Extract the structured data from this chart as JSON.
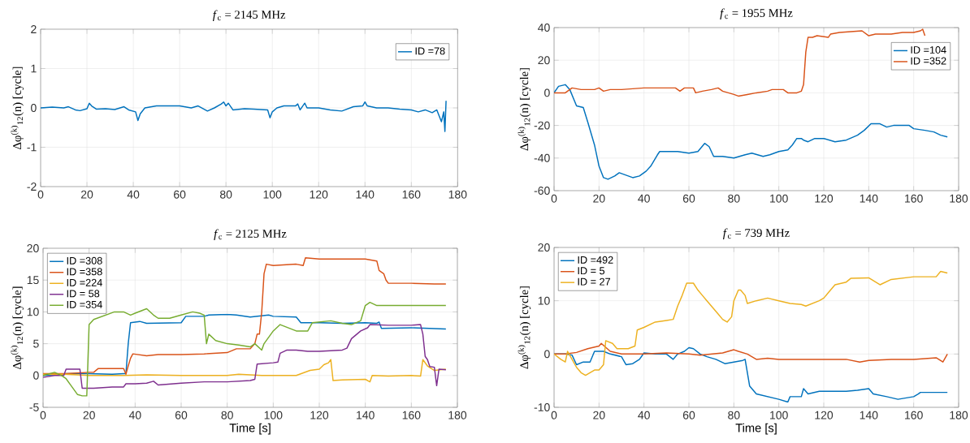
{
  "chart_data": [
    {
      "type": "line",
      "title": "*f*$_{c}$ = 2145 MHz",
      "ylabel": "Δφ$^{(k)}$$_{12}$(n) [cycle]",
      "xlim": [
        0,
        180
      ],
      "ylim": [
        -2,
        2
      ],
      "xticks": [
        0,
        20,
        40,
        60,
        80,
        100,
        120,
        140,
        160,
        180
      ],
      "yticks": [
        -2,
        -1,
        0,
        1,
        2
      ],
      "grid": true,
      "legend": "top right",
      "series": [
        {
          "name": "ID =78",
          "color": "#0072bd",
          "x": [
            0,
            5,
            10,
            12,
            15,
            17,
            20,
            21,
            22,
            24,
            28,
            32,
            36,
            38,
            41,
            42,
            43,
            45,
            50,
            55,
            60,
            65,
            68,
            72,
            75,
            78,
            79,
            80,
            81,
            83,
            88,
            92,
            98,
            99,
            100,
            102,
            105,
            110,
            111,
            112,
            114,
            115,
            120,
            125,
            130,
            135,
            139,
            140,
            141,
            145,
            150,
            155,
            160,
            163,
            166,
            169,
            171,
            172,
            173,
            174,
            174.5,
            175
          ],
          "values": [
            0,
            0.02,
            0,
            0.03,
            -0.05,
            -0.07,
            -0.02,
            0.12,
            0.05,
            -0.03,
            -0.02,
            -0.04,
            0.03,
            -0.05,
            -0.1,
            -0.32,
            -0.15,
            0,
            0.05,
            0.05,
            0.05,
            0,
            0.05,
            -0.08,
            0,
            0.1,
            0.15,
            0.05,
            0.12,
            -0.05,
            -0.02,
            -0.03,
            -0.05,
            -0.25,
            -0.1,
            0,
            0.05,
            0.05,
            0.1,
            -0.05,
            0.12,
            0,
            0,
            -0.05,
            -0.08,
            0.03,
            0.05,
            0.15,
            0.05,
            0,
            0,
            -0.03,
            -0.05,
            -0.1,
            -0.05,
            -0.12,
            -0.05,
            -0.2,
            -0.35,
            -0.1,
            -0.6,
            0.18
          ]
        }
      ]
    },
    {
      "type": "line",
      "title": "*f*$_{c}$ = 1955 MHz",
      "ylabel": "Δφ$^{(k)}$$_{12}$(n) [cycle]",
      "xlim": [
        0,
        180
      ],
      "ylim": [
        -60,
        40
      ],
      "xticks": [
        0,
        20,
        40,
        60,
        80,
        100,
        120,
        140,
        160,
        180
      ],
      "yticks": [
        -60,
        -40,
        -20,
        0,
        20,
        40
      ],
      "grid": true,
      "legend": "top right",
      "series": [
        {
          "name": "ID =104",
          "color": "#0072bd",
          "x": [
            0,
            2,
            5,
            7,
            10,
            13,
            15,
            18,
            20,
            22,
            24,
            27,
            29,
            33,
            35,
            38,
            41,
            43,
            46,
            47,
            55,
            60,
            64,
            67,
            69,
            71,
            75,
            80,
            85,
            88,
            93,
            96,
            100,
            104,
            106,
            108,
            110,
            111,
            113,
            116,
            120,
            125,
            130,
            135,
            138,
            141,
            145,
            148,
            151,
            158,
            160,
            165,
            169,
            172,
            175
          ],
          "values": [
            0,
            4,
            5,
            2,
            -8,
            -9,
            -18,
            -32,
            -45,
            -52,
            -53,
            -51,
            -49,
            -51,
            -52,
            -51,
            -48,
            -45,
            -38,
            -36,
            -36,
            -37,
            -36,
            -31,
            -33,
            -39,
            -39,
            -40,
            -38,
            -37,
            -39,
            -38,
            -36,
            -35,
            -32,
            -28,
            -28,
            -29,
            -30,
            -28,
            -28,
            -30,
            -29,
            -26,
            -23,
            -19,
            -19,
            -21,
            -20,
            -20,
            -22,
            -23,
            -24,
            -26,
            -27
          ]
        },
        {
          "name": "ID =352",
          "color": "#d95319",
          "x": [
            0,
            5,
            8,
            12,
            18,
            20,
            22,
            25,
            30,
            40,
            50,
            54,
            56,
            58,
            62,
            63,
            66,
            70,
            73,
            75,
            80,
            82,
            86,
            90,
            95,
            97,
            102,
            104,
            108,
            110,
            111,
            112,
            113,
            115,
            117,
            122,
            123,
            127,
            137,
            140,
            143,
            150,
            155,
            160,
            163,
            164,
            165
          ],
          "values": [
            0,
            0,
            3,
            2,
            2,
            3,
            1,
            2,
            2,
            3,
            3,
            3,
            1,
            3,
            3,
            0,
            1,
            2,
            3,
            1,
            -1,
            -2,
            -1,
            0,
            1,
            2,
            2,
            0,
            0,
            1,
            5,
            25,
            34,
            34,
            35,
            34,
            36,
            37,
            38,
            35,
            36,
            36,
            37,
            37,
            38,
            39,
            35
          ]
        }
      ]
    },
    {
      "type": "line",
      "title": "*f*$_{c}$ = 2125 MHz",
      "xlabel": "Time [s]",
      "ylabel": "Δφ$^{(k)}$$_{12}$(n) [cycle]",
      "xlim": [
        0,
        180
      ],
      "ylim": [
        -5,
        20
      ],
      "xticks": [
        0,
        20,
        40,
        60,
        80,
        100,
        120,
        140,
        160,
        180
      ],
      "yticks": [
        -5,
        0,
        5,
        10,
        15,
        20
      ],
      "grid": true,
      "legend": "top left",
      "series": [
        {
          "name": "ID =308",
          "color": "#0072bd",
          "x": [
            0,
            10,
            20,
            30,
            35,
            36,
            37,
            38,
            42,
            45,
            60,
            62,
            70,
            72,
            80,
            84,
            90,
            98,
            100,
            110,
            112,
            120,
            130,
            140,
            145,
            146,
            147,
            160,
            175
          ],
          "values": [
            0,
            0.3,
            0.3,
            0.2,
            0.3,
            0.3,
            5,
            8.3,
            8.5,
            8.2,
            8.3,
            9.3,
            9.3,
            9.5,
            9.6,
            9.5,
            9.2,
            9.5,
            9.3,
            9.2,
            8.3,
            8.3,
            8.2,
            8.3,
            8.2,
            8.4,
            7.4,
            7.5,
            7.3
          ]
        },
        {
          "name": "ID =358",
          "color": "#d95319",
          "x": [
            0,
            10,
            20,
            22,
            24,
            35,
            36,
            37,
            38,
            39,
            45,
            50,
            60,
            70,
            80,
            84,
            90,
            92,
            93,
            94,
            95,
            96,
            97,
            100,
            110,
            113,
            114,
            120,
            140,
            145,
            146,
            148,
            149,
            150,
            160,
            170,
            175
          ],
          "values": [
            0.3,
            0.3,
            0.5,
            0.5,
            1.1,
            1.1,
            0.2,
            1.5,
            2.7,
            3.4,
            3.1,
            3.3,
            3.3,
            3.4,
            3.6,
            4.2,
            4.2,
            5,
            6.5,
            6.5,
            10,
            16,
            17.5,
            17.3,
            17.5,
            17.3,
            18.5,
            18.3,
            18.3,
            18,
            16.5,
            16,
            15,
            14.5,
            14.5,
            14.4,
            14.4
          ]
        },
        {
          "name": "ID =224",
          "color": "#edb120",
          "x": [
            0,
            10,
            20,
            22,
            25,
            35,
            45,
            60,
            78,
            80,
            85,
            95,
            100,
            110,
            116,
            120,
            122,
            124,
            125,
            126,
            130,
            140,
            142,
            143,
            150,
            160,
            164,
            165,
            167,
            170,
            175
          ],
          "values": [
            0.2,
            0.2,
            0,
            0,
            0,
            0,
            0.1,
            0,
            0,
            0,
            0.2,
            0,
            0,
            0,
            0.8,
            1,
            1.7,
            2,
            2.5,
            -0.8,
            -0.7,
            -0.6,
            -1,
            0,
            -0.1,
            0,
            -0.1,
            2.5,
            1.5,
            0.8,
            1
          ]
        },
        {
          "name": "ID = 58",
          "color": "#7e2f8e",
          "x": [
            0,
            5,
            9,
            10,
            15,
            16,
            17,
            22,
            30,
            35,
            36,
            40,
            45,
            48,
            50,
            60,
            70,
            80,
            90,
            92,
            93,
            100,
            102,
            103,
            106,
            110,
            115,
            120,
            130,
            132,
            134,
            138,
            141,
            142,
            150,
            160,
            164,
            165,
            166,
            167,
            168,
            170,
            171,
            172,
            175
          ],
          "values": [
            -0.3,
            0,
            0,
            1,
            1,
            1,
            -2,
            -2,
            -1.8,
            -1.8,
            -1.3,
            -1.3,
            -1.2,
            -0.9,
            -1.5,
            -1.2,
            -1,
            -1,
            -0.8,
            -0.6,
            1.8,
            2,
            2.1,
            3.5,
            4,
            4,
            3.8,
            3.8,
            4,
            4.3,
            5.8,
            7,
            7.5,
            8,
            7.9,
            7.9,
            8,
            6.5,
            3,
            2.5,
            1.4,
            1.3,
            -1.6,
            1,
            0.9
          ]
        },
        {
          "name": "ID =354",
          "color": "#77ac30",
          "x": [
            0,
            5,
            8,
            10,
            12,
            15,
            17,
            19,
            20,
            22,
            31,
            35,
            38,
            40,
            45,
            48,
            50,
            55,
            60,
            65,
            68,
            70,
            71,
            72,
            75,
            80,
            85,
            90,
            92,
            95,
            96,
            100,
            103,
            110,
            115,
            117,
            125,
            130,
            134,
            138,
            140,
            142,
            145,
            150,
            160,
            170,
            175
          ],
          "values": [
            0,
            0.5,
            0,
            -0.5,
            -1.5,
            -3,
            -3.2,
            -3.2,
            8,
            8.8,
            10,
            10,
            9.5,
            9.8,
            10.5,
            9.5,
            9,
            9,
            9.5,
            10,
            9.8,
            9.5,
            5,
            6.5,
            5.5,
            5,
            4.8,
            4.5,
            5,
            4,
            5,
            7,
            8,
            7,
            7,
            8.3,
            8.6,
            8.2,
            8,
            8.6,
            11,
            11.5,
            11,
            11,
            11,
            11,
            11
          ]
        }
      ]
    },
    {
      "type": "line",
      "title": "*f*$_{c}$ = 739 MHz",
      "xlabel": "Time [s]",
      "ylabel": "Δφ$^{(k)}$$_{12}$(n) [cycle]",
      "xlim": [
        0,
        180
      ],
      "ylim": [
        -10,
        20
      ],
      "xticks": [
        0,
        20,
        40,
        60,
        80,
        100,
        120,
        140,
        160,
        180
      ],
      "yticks": [
        -10,
        0,
        10,
        20
      ],
      "grid": true,
      "legend": "top left",
      "series": [
        {
          "name": "ID =492",
          "color": "#0072bd",
          "x": [
            0,
            5,
            8,
            10,
            13,
            16,
            18,
            22,
            25,
            30,
            32,
            35,
            38,
            40,
            45,
            50,
            53,
            55,
            58,
            60,
            62,
            65,
            68,
            72,
            76,
            80,
            84,
            85,
            87,
            88,
            90,
            95,
            100,
            104,
            105,
            110,
            111,
            113,
            118,
            125,
            130,
            135,
            140,
            142,
            148,
            153,
            160,
            162,
            163,
            170,
            175
          ],
          "values": [
            0,
            0,
            -0.2,
            -2,
            -1.5,
            -1.5,
            0.5,
            0.5,
            0,
            -0.5,
            -2,
            -1.8,
            -1,
            0.2,
            0,
            0,
            -1,
            0,
            0.5,
            1.2,
            1,
            0,
            -0.5,
            -1,
            -1.8,
            -1.5,
            -1.2,
            -1,
            -6,
            -6.5,
            -7.5,
            -8,
            -8.5,
            -9,
            -8,
            -8,
            -6.5,
            -7.5,
            -7,
            -7,
            -7,
            -6.8,
            -6.5,
            -7.5,
            -8,
            -8.5,
            -8,
            -7.5,
            -7.2,
            -7.2,
            -7.2
          ]
        },
        {
          "name": "ID = 5",
          "color": "#d95319",
          "x": [
            0,
            5,
            10,
            15,
            20,
            21,
            25,
            30,
            40,
            50,
            60,
            65,
            70,
            75,
            80,
            82,
            86,
            90,
            95,
            100,
            110,
            120,
            130,
            136,
            140,
            150,
            160,
            170,
            173,
            175
          ],
          "values": [
            0,
            0,
            0.3,
            1,
            1.5,
            2,
            0.5,
            0,
            0,
            0.2,
            0,
            -0.2,
            0,
            0.2,
            0.8,
            0.5,
            0,
            -1,
            -0.8,
            -1,
            -1,
            -1,
            -1,
            -1.5,
            -1.2,
            -1,
            -1,
            -0.7,
            -1.5,
            0
          ]
        },
        {
          "name": "ID = 27",
          "color": "#edb120",
          "x": [
            0,
            3,
            5,
            6,
            8,
            10,
            12,
            14,
            18,
            20,
            22,
            23,
            26,
            28,
            30,
            33,
            36,
            37,
            40,
            45,
            50,
            53,
            55,
            57,
            59,
            62,
            64,
            66,
            68,
            70,
            73,
            75,
            77,
            79,
            80,
            82,
            83,
            85,
            86,
            90,
            95,
            100,
            105,
            110,
            112,
            118,
            120,
            122,
            125,
            130,
            132,
            140,
            145,
            150,
            160,
            170,
            172,
            175
          ],
          "values": [
            0,
            -1,
            -1.5,
            0.5,
            -1,
            -2.5,
            -3.5,
            -4,
            -3,
            -3,
            -2,
            2.5,
            2,
            1,
            1,
            1,
            1.5,
            4.5,
            5,
            6,
            6.3,
            6.5,
            9,
            11,
            13.3,
            13.3,
            12,
            11,
            10,
            9,
            7.5,
            6.5,
            6,
            7,
            10,
            12,
            12,
            11,
            9.5,
            10,
            10.5,
            10,
            9.5,
            9.3,
            9,
            10,
            10.5,
            11.5,
            13,
            13.5,
            14.2,
            14.3,
            13,
            14,
            14.5,
            14.5,
            15.5,
            15.2
          ]
        }
      ]
    }
  ]
}
